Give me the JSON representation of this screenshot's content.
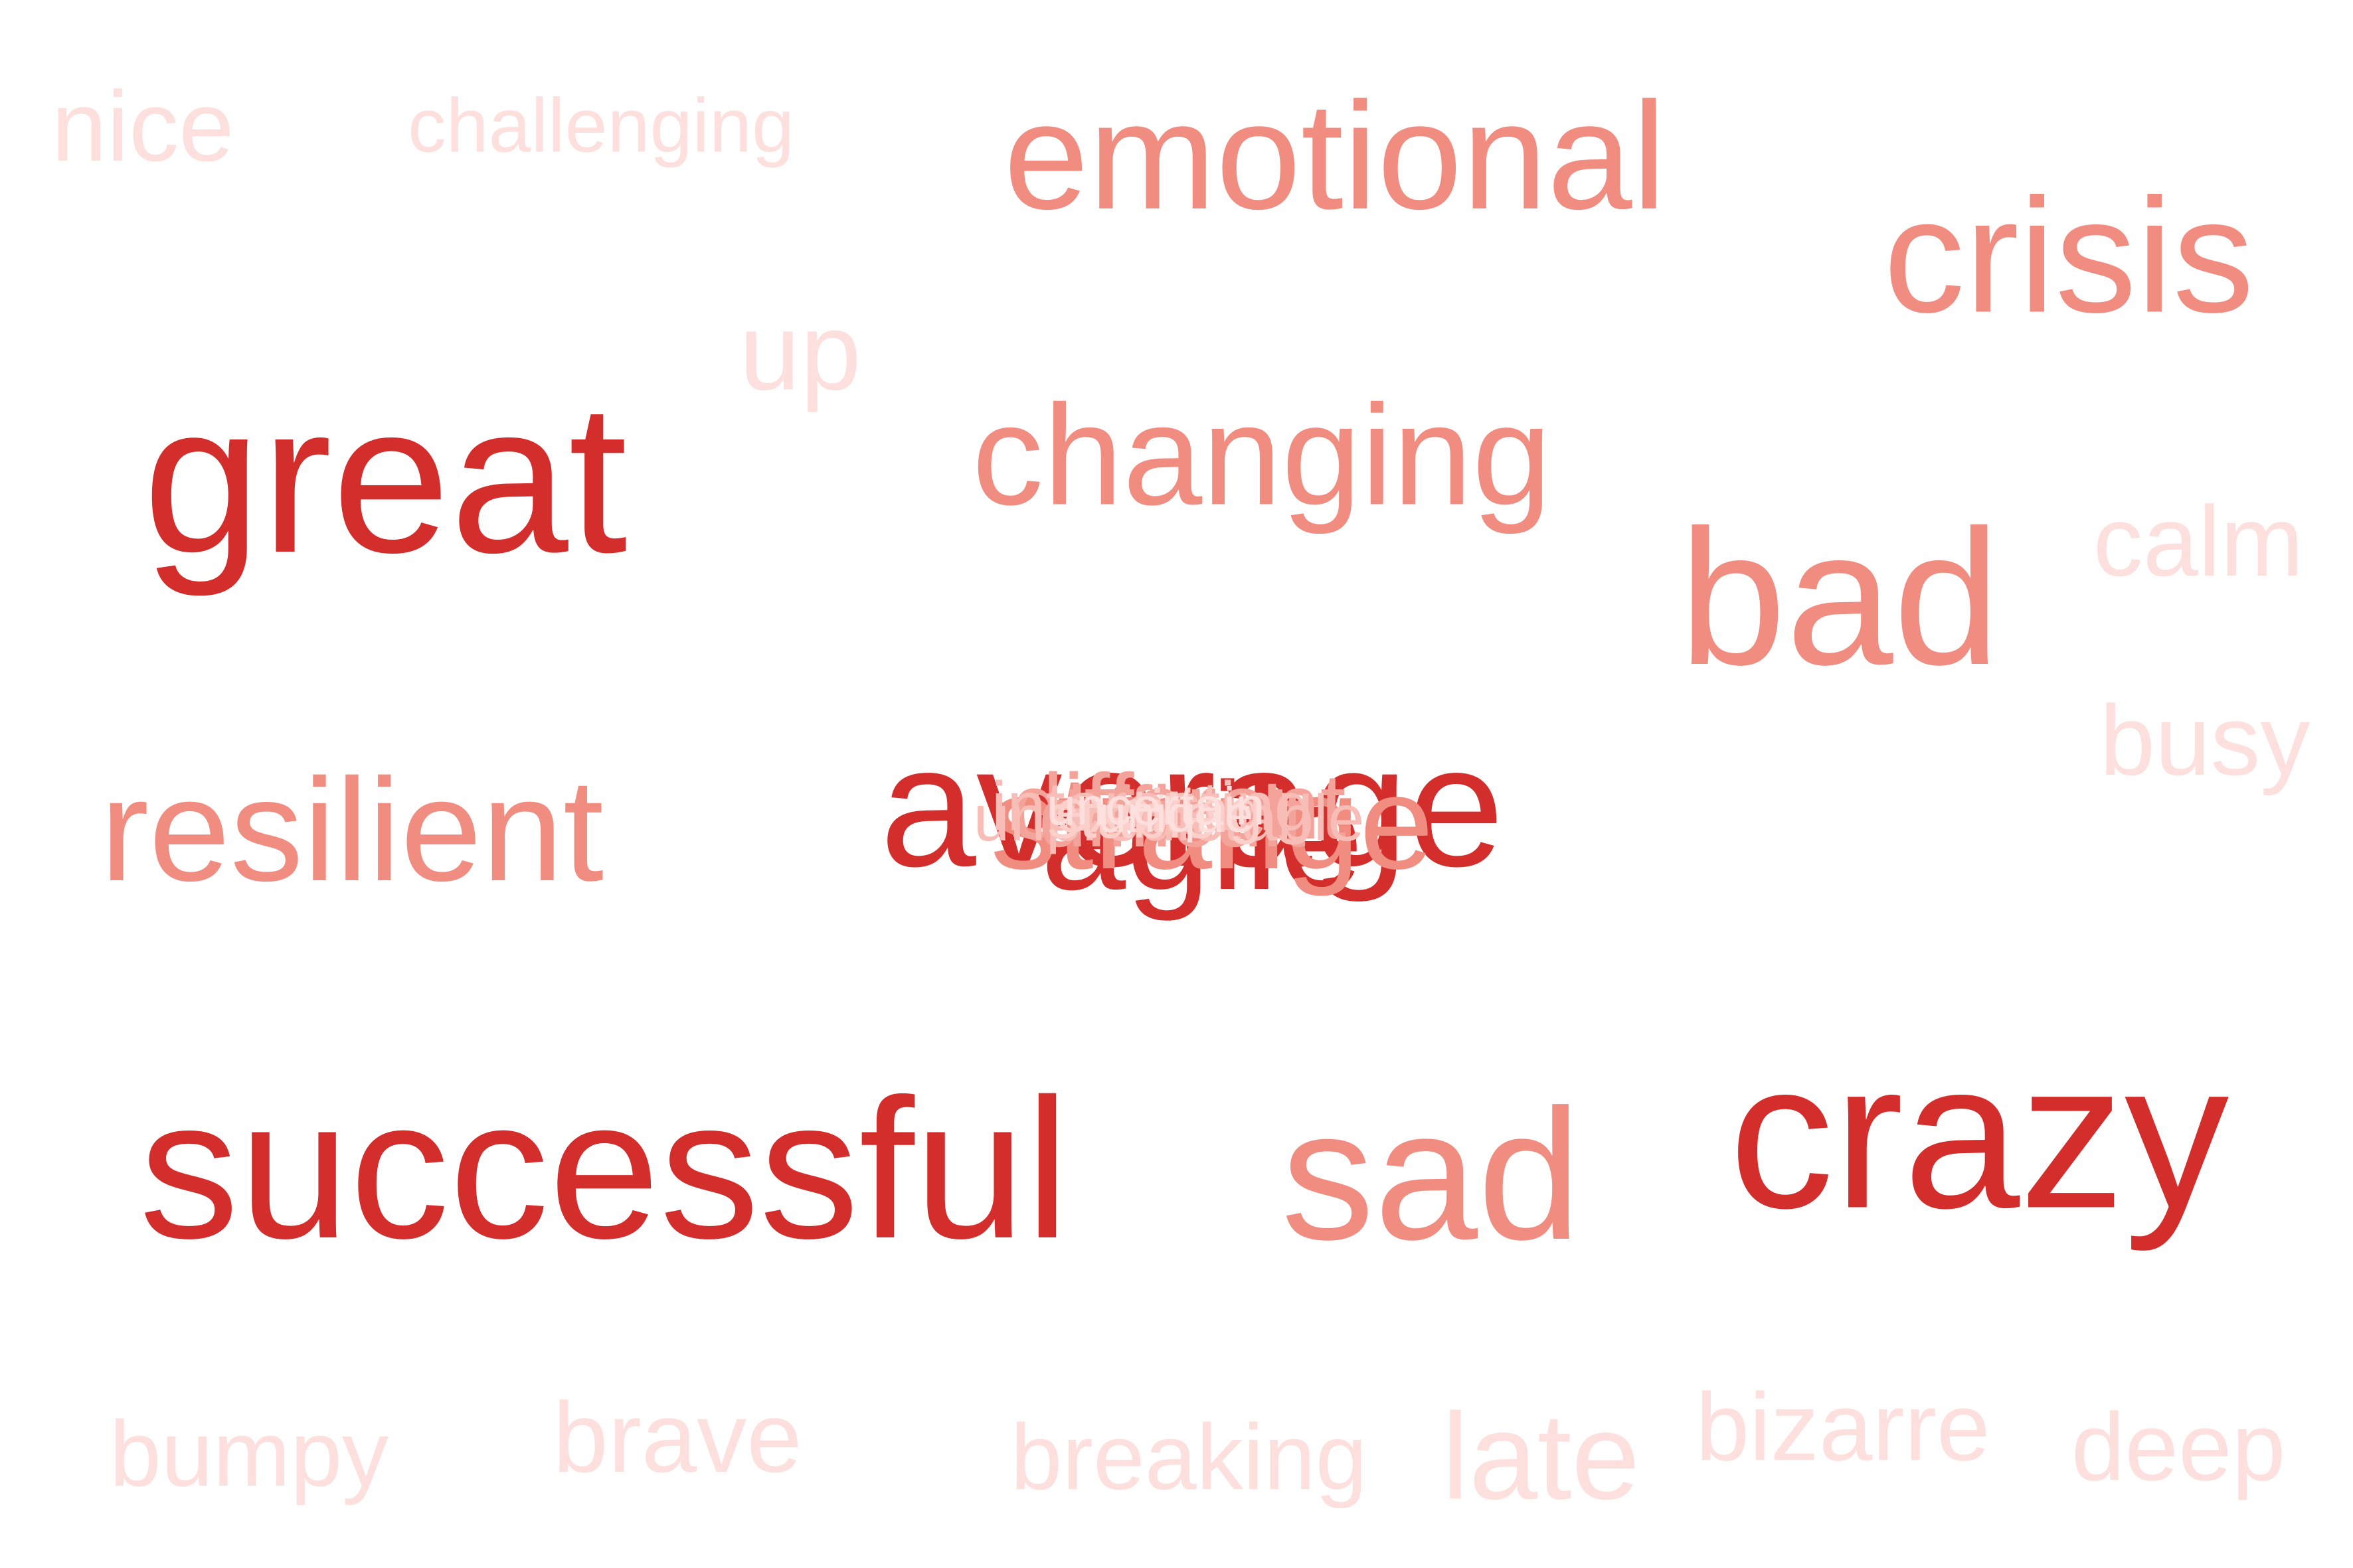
{
  "words": [
    {
      "text": "nice",
      "tier": "pale"
    },
    {
      "text": "challenging",
      "tier": "pale"
    },
    {
      "text": "emotional",
      "tier": "mid"
    },
    {
      "text": "crisis",
      "tier": "mid"
    },
    {
      "text": "up",
      "tier": "pale"
    },
    {
      "text": "great",
      "tier": "dark"
    },
    {
      "text": "changing",
      "tier": "mid"
    },
    {
      "text": "bad",
      "tier": "mid"
    },
    {
      "text": "calm",
      "tier": "pale"
    },
    {
      "text": "busy",
      "tier": "pale"
    },
    {
      "text": "resilient",
      "tier": "mid"
    },
    {
      "text": "successful",
      "tier": "dark"
    },
    {
      "text": "sad",
      "tier": "mid"
    },
    {
      "text": "crazy",
      "tier": "dark"
    },
    {
      "text": "bumpy",
      "tier": "pale"
    },
    {
      "text": "brave",
      "tier": "pale"
    },
    {
      "text": "breaking",
      "tier": "pale"
    },
    {
      "text": "late",
      "tier": "pale"
    },
    {
      "text": "bizarre",
      "tier": "pale"
    },
    {
      "text": "deep",
      "tier": "pale"
    }
  ],
  "center_cluster": [
    {
      "text": "average",
      "tier": "dark"
    },
    {
      "text": "agile",
      "tier": "dark"
    },
    {
      "text": "strange",
      "tier": "mid"
    },
    {
      "text": "different",
      "tier": "c1"
    },
    {
      "text": "difficult",
      "tier": "c1"
    },
    {
      "text": "interesting",
      "tier": "c2"
    },
    {
      "text": "unpredictable",
      "tier": "c2"
    },
    {
      "text": "exciting",
      "tier": "c3"
    },
    {
      "text": "stable",
      "tier": "c3"
    },
    {
      "text": "uncertain",
      "tier": "pale"
    },
    {
      "text": "unique",
      "tier": "pale"
    }
  ]
}
